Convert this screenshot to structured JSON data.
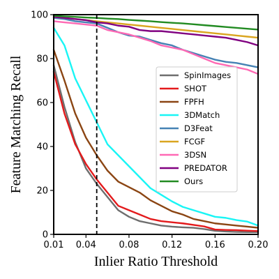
{
  "chart_data": {
    "type": "line",
    "xlabel": "Inlier Ratio Threshold",
    "ylabel": "Feature Matching Recall",
    "xlim": [
      0.01,
      0.2
    ],
    "ylim": [
      0,
      100
    ],
    "x_ticks": [
      "0.01",
      "0.04",
      "0.08",
      "0.12",
      "0.16",
      "0.20"
    ],
    "y_ticks": [
      "0",
      "20",
      "40",
      "60",
      "80",
      "100"
    ],
    "grid": false,
    "legend_position": "center-right",
    "vertical_reference_line": {
      "x": 0.05,
      "style": "dashed",
      "color": "#000000"
    },
    "x": [
      0.01,
      0.02,
      0.03,
      0.04,
      0.05,
      0.06,
      0.07,
      0.08,
      0.09,
      0.1,
      0.11,
      0.12,
      0.13,
      0.14,
      0.15,
      0.16,
      0.17,
      0.18,
      0.19,
      0.2
    ],
    "series": [
      {
        "name": "SpinImages",
        "color": "#6e6e6e",
        "values": [
          77,
          58,
          42,
          30,
          23,
          17,
          11,
          8,
          6,
          5,
          4,
          3.5,
          3.2,
          3,
          2.4,
          1.6,
          1.3,
          1.1,
          1,
          1
        ]
      },
      {
        "name": "SHOT",
        "color": "#e31a1c",
        "values": [
          74,
          55,
          41,
          32,
          25,
          19,
          13,
          11,
          9,
          7,
          6,
          5.5,
          5,
          4.3,
          3.6,
          2.2,
          2,
          1.9,
          1.7,
          1.5
        ]
      },
      {
        "name": "FPFH",
        "color": "#8b4513",
        "values": [
          84,
          70,
          55,
          44,
          36,
          29,
          24,
          21.5,
          19,
          15.5,
          13,
          10.5,
          9,
          7,
          6,
          5,
          4.5,
          4,
          3.5,
          3
        ]
      },
      {
        "name": "3DMatch",
        "color": "#19f5f5",
        "values": [
          94,
          86,
          71,
          61,
          51,
          41,
          36,
          31,
          26,
          21,
          18,
          15,
          12.5,
          11,
          9.5,
          8,
          7.5,
          6.5,
          5.8,
          4
        ]
      },
      {
        "name": "D3Feat",
        "color": "#4682b4",
        "values": [
          98.5,
          98,
          97,
          96.5,
          96,
          94,
          92,
          90.5,
          90,
          88.5,
          87,
          86,
          84,
          82.5,
          81,
          79.5,
          78.5,
          78,
          77,
          76
        ]
      },
      {
        "name": "FCGF",
        "color": "#daa520",
        "values": [
          99,
          98.5,
          98,
          97.5,
          97,
          96.5,
          96,
          95.5,
          95,
          94.5,
          94,
          93.5,
          93,
          92.5,
          92,
          91.5,
          91,
          90.5,
          90,
          89.5
        ]
      },
      {
        "name": "3DSN",
        "color": "#ff69b4",
        "values": [
          97,
          96.5,
          96,
          95.5,
          95,
          93,
          92,
          91,
          89.5,
          88,
          86,
          85,
          84,
          82,
          80,
          78,
          77,
          76,
          75,
          73
        ]
      },
      {
        "name": "PREDATOR",
        "color": "#800080",
        "values": [
          99,
          98.5,
          98,
          97.5,
          96.5,
          96,
          95,
          94.5,
          93,
          92.5,
          92.5,
          92,
          91.5,
          91,
          90.5,
          90,
          89.5,
          88.5,
          87.5,
          86
        ]
      },
      {
        "name": "Ours",
        "color": "#228b22",
        "values": [
          99.5,
          99.2,
          99,
          98.7,
          98.5,
          98.2,
          98,
          97.6,
          97.3,
          97,
          96.6,
          96.3,
          96,
          95.6,
          95.2,
          94.8,
          94.4,
          94,
          93.6,
          93.2
        ]
      }
    ]
  }
}
